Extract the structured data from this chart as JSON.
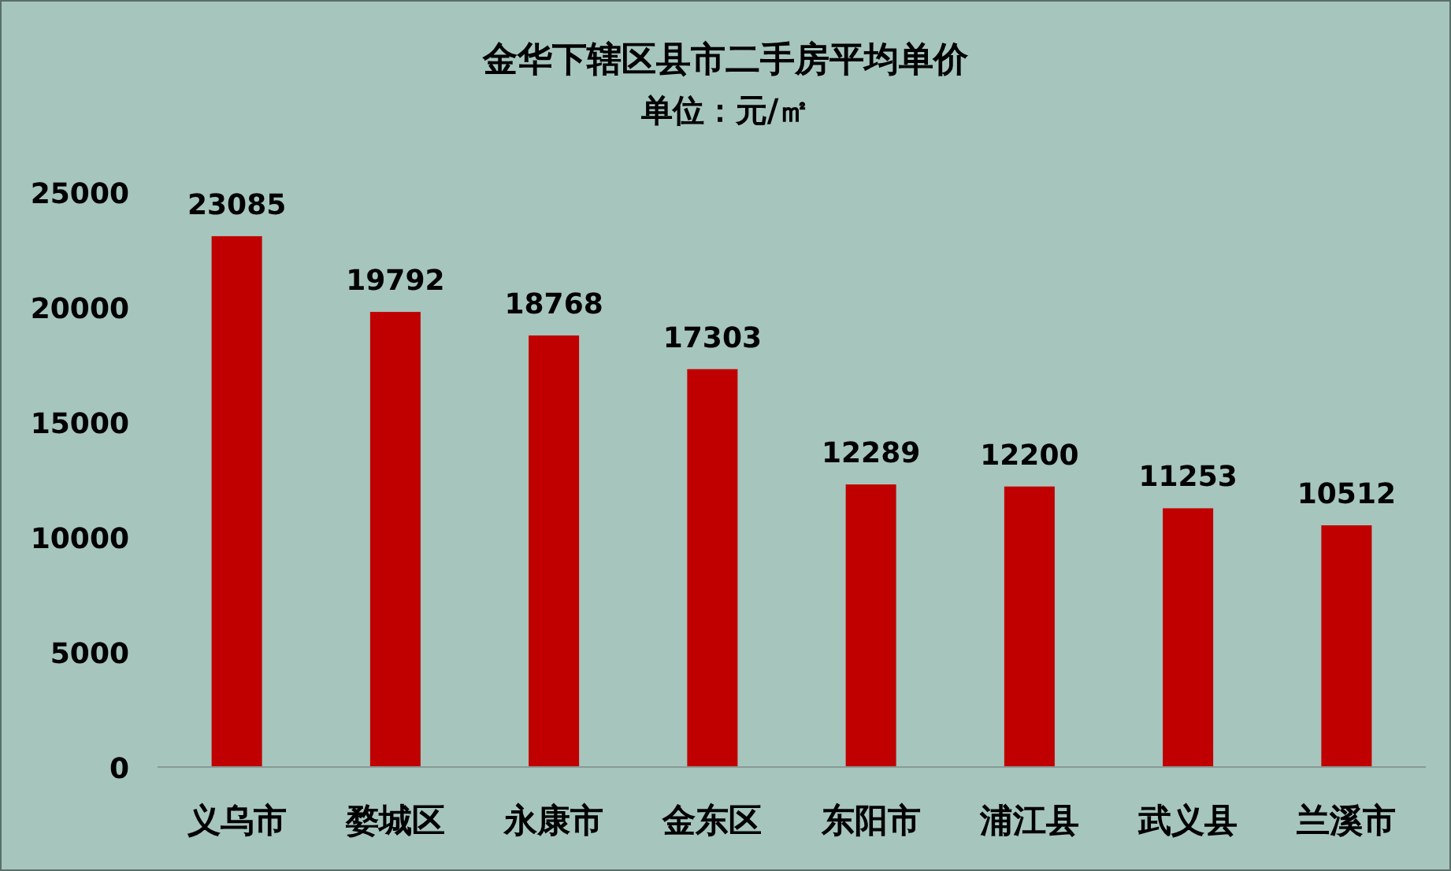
{
  "chart_data": {
    "type": "bar",
    "title": "金华下辖区县市二手房平均单价",
    "subtitle": "单位：元/㎡",
    "categories": [
      "义乌市",
      "婺城区",
      "永康市",
      "金东区",
      "东阳市",
      "浦江县",
      "武义县",
      "兰溪市"
    ],
    "values": [
      23085,
      19792,
      18768,
      17303,
      12289,
      12200,
      11253,
      10512
    ],
    "color": "#c00000",
    "ylim": [
      0,
      25000
    ],
    "yticks": [
      0,
      5000,
      10000,
      15000,
      20000,
      25000
    ],
    "data_labels": true,
    "grid": false
  }
}
